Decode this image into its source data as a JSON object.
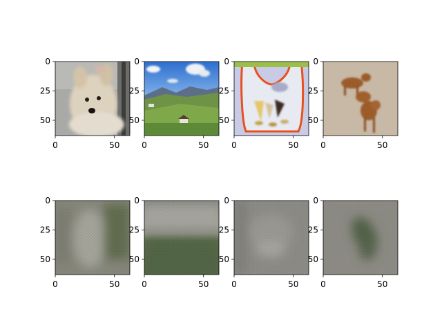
{
  "chart_data": {
    "type": "image-grid",
    "rows": 2,
    "cols": 4,
    "image_size": [
      64,
      64
    ],
    "xlim": [
      0,
      63
    ],
    "ylim": [
      63,
      0
    ],
    "x_ticks": [
      0,
      50
    ],
    "y_ticks": [
      0,
      25,
      50
    ],
    "panels": [
      {
        "row": 0,
        "col": 0,
        "subject": "white terrier dog close-up on grey floor"
      },
      {
        "row": 0,
        "col": 1,
        "subject": "green alpine valley with blue sky and clouds"
      },
      {
        "row": 0,
        "col": 2,
        "subject": "orange-trimmed bib with ice cream cone prints"
      },
      {
        "row": 0,
        "col": 3,
        "subject": "two brown dogs walking on sand"
      },
      {
        "row": 1,
        "col": 0,
        "subject": "blurry grey reconstruction of dog image"
      },
      {
        "row": 1,
        "col": 1,
        "subject": "blurry reconstruction of valley image, green lower half"
      },
      {
        "row": 1,
        "col": 2,
        "subject": "blurry grey reconstruction of bib image"
      },
      {
        "row": 1,
        "col": 3,
        "subject": "blurry reconstruction of dogs image, dark diagonal blob"
      }
    ]
  },
  "colors": {
    "sky": "#3f7fd8",
    "grass": "#5f8a3c",
    "sand": "#c9b8a0",
    "dog_brown": "#9a5a2c",
    "bib_orange": "#e8501e",
    "recon_grey": "#868679",
    "recon_green": "#50633f"
  }
}
